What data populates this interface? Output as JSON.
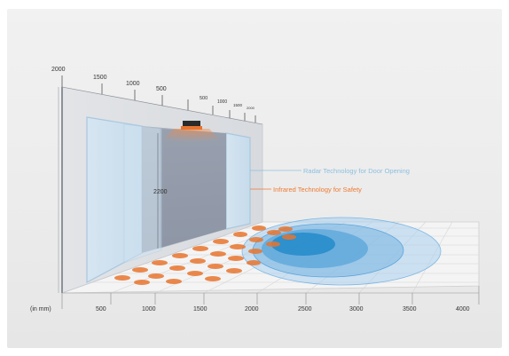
{
  "colors": {
    "radar_blue": "#6fb0dd",
    "radar_deep": "#1b86c7",
    "infrared_orange": "#e8742e",
    "label_blue": "#8cbfe0",
    "label_orange": "#ee7a32",
    "axis_text": "#444444"
  },
  "top_scale": {
    "left_labels": [
      "2000",
      "1500",
      "1000",
      "500"
    ],
    "right_labels": [
      "500",
      "1000",
      "1500",
      "2000"
    ]
  },
  "door_height_label": "2200",
  "unit_label": "(in mm)",
  "bottom_scale": [
    "500",
    "1000",
    "1500",
    "2000",
    "2500",
    "3000",
    "3500",
    "4000"
  ],
  "legend": {
    "radar": "Radar Technology for Door Opening",
    "infrared": "Infrared Technology for Safety"
  },
  "icons": {
    "sensor": "door-sensor-icon"
  }
}
